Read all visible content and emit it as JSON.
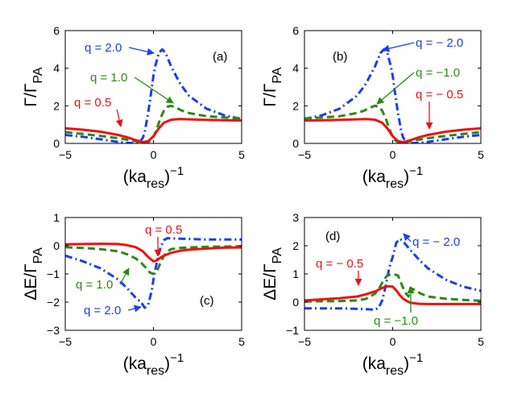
{
  "chart_data": [
    {
      "id": "a",
      "type": "line",
      "panel_label": "(a)",
      "xlabel_base": "(ka",
      "xlabel_sub": "res",
      "xlabel_close": ")",
      "xlabel_sup": "−1",
      "ylabel_base": "Γ/Γ",
      "ylabel_sub": "PA",
      "xlim": [
        -5,
        5
      ],
      "ylim": [
        0,
        6
      ],
      "xticks": [
        -5,
        0,
        5
      ],
      "yticks": [
        0,
        2,
        4,
        6
      ],
      "xtick_labels": [
        "−5",
        "0",
        "5"
      ],
      "ytick_labels": [
        "0",
        "2",
        "4",
        "6"
      ],
      "series": [
        {
          "name": "q = 2.0",
          "color": "#1a3df2",
          "style": "dashdot",
          "x": [
            -5,
            -4,
            -3,
            -2,
            -1.5,
            -1,
            -0.8,
            -0.6,
            -0.5,
            -0.3,
            -0.1,
            0,
            0.1,
            0.3,
            0.5,
            0.7,
            1,
            1.5,
            2,
            3,
            4,
            5
          ],
          "y": [
            0.45,
            0.35,
            0.22,
            0.08,
            0.03,
            0.0,
            0.05,
            0.3,
            0.6,
            1.6,
            2.9,
            3.6,
            4.1,
            4.8,
            5.0,
            4.8,
            4.1,
            3.2,
            2.55,
            1.85,
            1.5,
            1.3
          ]
        },
        {
          "name": "q = 1.0",
          "color": "#2a8a14",
          "style": "dashed",
          "x": [
            -5,
            -4,
            -3,
            -2,
            -1,
            -0.5,
            -0.3,
            -0.1,
            0,
            0.2,
            0.4,
            0.6,
            0.8,
            1,
            1.3,
            1.6,
            2,
            3,
            4,
            5
          ],
          "y": [
            0.6,
            0.5,
            0.4,
            0.28,
            0.12,
            0.05,
            0.06,
            0.2,
            0.35,
            0.8,
            1.35,
            1.75,
            1.95,
            2.0,
            1.9,
            1.75,
            1.62,
            1.45,
            1.38,
            1.33
          ]
        },
        {
          "name": "q = 0.5",
          "color": "#ee1111",
          "style": "solid",
          "x": [
            -5,
            -4,
            -3,
            -2,
            -1.5,
            -1,
            -0.6,
            -0.3,
            0,
            0.3,
            0.6,
            1,
            1.5,
            2,
            3,
            4,
            5
          ],
          "y": [
            0.8,
            0.73,
            0.62,
            0.45,
            0.33,
            0.17,
            0.07,
            0.12,
            0.38,
            0.8,
            1.1,
            1.26,
            1.3,
            1.28,
            1.25,
            1.23,
            1.22
          ]
        }
      ],
      "annotations": [
        {
          "text": "q = 2.0",
          "color": "#1a3df2",
          "series": 0
        },
        {
          "text": "q = 1.0",
          "color": "#2a8a14",
          "series": 1
        },
        {
          "text": "q = 0.5",
          "color": "#ee1111",
          "series": 2
        }
      ]
    },
    {
      "id": "b",
      "type": "line",
      "panel_label": "(b)",
      "xlabel_base": "(ka",
      "xlabel_sub": "res",
      "xlabel_close": ")",
      "xlabel_sup": "−1",
      "ylabel_base": "Γ/Γ",
      "ylabel_sub": "PA",
      "xlim": [
        -5,
        5
      ],
      "ylim": [
        0,
        6
      ],
      "xticks": [
        -5,
        0,
        5
      ],
      "yticks": [
        0,
        2,
        4,
        6
      ],
      "xtick_labels": [
        "−5",
        "0",
        "5"
      ],
      "ytick_labels": [
        "0",
        "2",
        "4",
        "6"
      ],
      "series": [
        {
          "name": "q = − 2.0",
          "color": "#1a3df2",
          "style": "dashdot",
          "x": [
            -5,
            -4,
            -3,
            -2,
            -1.5,
            -1,
            -0.7,
            -0.5,
            -0.3,
            -0.1,
            0,
            0.1,
            0.3,
            0.5,
            0.6,
            0.8,
            1,
            1.5,
            2,
            3,
            4,
            5
          ],
          "y": [
            1.3,
            1.5,
            1.85,
            2.55,
            3.2,
            4.1,
            4.8,
            5.0,
            4.8,
            4.1,
            3.6,
            2.9,
            1.6,
            0.6,
            0.3,
            0.05,
            0.0,
            0.03,
            0.08,
            0.22,
            0.35,
            0.45
          ]
        },
        {
          "name": "q = −1.0",
          "color": "#2a8a14",
          "style": "dashed",
          "x": [
            -5,
            -4,
            -3,
            -2,
            -1.6,
            -1.3,
            -1,
            -0.8,
            -0.6,
            -0.4,
            -0.2,
            0,
            0.1,
            0.3,
            0.5,
            1,
            2,
            3,
            4,
            5
          ],
          "y": [
            1.33,
            1.38,
            1.45,
            1.62,
            1.75,
            1.9,
            2.0,
            1.95,
            1.75,
            1.35,
            0.8,
            0.35,
            0.2,
            0.06,
            0.05,
            0.12,
            0.28,
            0.4,
            0.5,
            0.6
          ]
        },
        {
          "name": "q = − 0.5",
          "color": "#ee1111",
          "style": "solid",
          "x": [
            -5,
            -4,
            -3,
            -2,
            -1.5,
            -1,
            -0.6,
            -0.3,
            0,
            0.3,
            0.6,
            1,
            1.5,
            2,
            3,
            4,
            5
          ],
          "y": [
            1.22,
            1.23,
            1.25,
            1.28,
            1.3,
            1.26,
            1.1,
            0.8,
            0.38,
            0.12,
            0.07,
            0.17,
            0.33,
            0.45,
            0.62,
            0.73,
            0.8
          ]
        }
      ],
      "annotations": [
        {
          "text": "q = − 2.0",
          "color": "#1a3df2",
          "series": 0
        },
        {
          "text": "q = −1.0",
          "color": "#2a8a14",
          "series": 1
        },
        {
          "text": "q = − 0.5",
          "color": "#ee1111",
          "series": 2
        }
      ]
    },
    {
      "id": "c",
      "type": "line",
      "panel_label": "(c)",
      "xlabel_base": "(ka",
      "xlabel_sub": "res",
      "xlabel_close": ")",
      "xlabel_sup": "−1",
      "ylabel_base": "ΔE/Γ",
      "ylabel_sub": "PA",
      "xlim": [
        -5,
        5
      ],
      "ylim": [
        -3,
        1
      ],
      "xticks": [
        -5,
        0,
        5
      ],
      "yticks": [
        -3,
        -2,
        -1,
        0,
        1
      ],
      "xtick_labels": [
        "−5",
        "0",
        "5"
      ],
      "ytick_labels": [
        "−3",
        "−2",
        "−1",
        "0",
        "1"
      ],
      "series": [
        {
          "name": "q = 2.0",
          "color": "#1a3df2",
          "style": "dashdot",
          "x": [
            -5,
            -4,
            -3,
            -2,
            -1.5,
            -1,
            -0.7,
            -0.5,
            -0.3,
            -0.1,
            0,
            0.2,
            0.4,
            0.6,
            0.8,
            1,
            1.5,
            2,
            3,
            4,
            5
          ],
          "y": [
            -0.35,
            -0.55,
            -0.8,
            -1.2,
            -1.5,
            -1.85,
            -2.0,
            -2.2,
            -2.1,
            -1.6,
            -1.2,
            -0.55,
            -0.05,
            0.2,
            0.27,
            0.26,
            0.25,
            0.24,
            0.22,
            0.22,
            0.22
          ]
        },
        {
          "name": "q = 1.0",
          "color": "#2a8a14",
          "style": "dashed",
          "x": [
            -5,
            -4,
            -3,
            -2,
            -1.5,
            -1,
            -0.7,
            -0.4,
            -0.2,
            0,
            0.2,
            0.4,
            0.6,
            0.8,
            1,
            1.5,
            2,
            3,
            4,
            5
          ],
          "y": [
            -0.05,
            -0.08,
            -0.12,
            -0.2,
            -0.3,
            -0.45,
            -0.6,
            -0.8,
            -0.95,
            -1.0,
            -0.9,
            -0.6,
            -0.35,
            -0.2,
            -0.12,
            -0.08,
            -0.06,
            -0.04,
            -0.03,
            -0.02
          ]
        },
        {
          "name": "q = 0.5",
          "color": "#ee1111",
          "style": "solid",
          "x": [
            -5,
            -4,
            -3,
            -2,
            -1.5,
            -1,
            -0.6,
            -0.3,
            0,
            0.2,
            0.4,
            0.6,
            0.8,
            1,
            1.5,
            2,
            3,
            4,
            5
          ],
          "y": [
            0.05,
            0.06,
            0.07,
            0.06,
            0.02,
            -0.05,
            -0.2,
            -0.4,
            -0.55,
            -0.52,
            -0.42,
            -0.35,
            -0.3,
            -0.25,
            -0.18,
            -0.14,
            -0.1,
            -0.07,
            -0.06
          ]
        }
      ],
      "annotations": [
        {
          "text": "q = 0.5",
          "color": "#ee1111",
          "series": 2
        },
        {
          "text": "q = 1.0",
          "color": "#2a8a14",
          "series": 1
        },
        {
          "text": "q = 2.0",
          "color": "#1a3df2",
          "series": 0
        }
      ]
    },
    {
      "id": "d",
      "type": "line",
      "panel_label": "(d)",
      "xlabel_base": "(ka",
      "xlabel_sub": "res",
      "xlabel_close": ")",
      "xlabel_sup": "−1",
      "ylabel_base": "ΔE/Γ",
      "ylabel_sub": "PA",
      "xlim": [
        -5,
        5
      ],
      "ylim": [
        -1,
        3
      ],
      "xticks": [
        -5,
        0,
        5
      ],
      "yticks": [
        -1,
        0,
        1,
        2,
        3
      ],
      "xtick_labels": [
        "−5",
        "0",
        "5"
      ],
      "ytick_labels": [
        "−1",
        "0",
        "1",
        "2",
        "3"
      ],
      "series": [
        {
          "name": "q = − 2.0",
          "color": "#1a3df2",
          "style": "dashdot",
          "x": [
            -5,
            -4,
            -3,
            -2,
            -1.5,
            -1,
            -0.8,
            -0.6,
            -0.4,
            -0.2,
            0,
            0.2,
            0.4,
            0.6,
            0.8,
            1,
            1.5,
            2,
            3,
            4,
            5
          ],
          "y": [
            -0.22,
            -0.22,
            -0.22,
            -0.24,
            -0.25,
            -0.27,
            -0.2,
            0.05,
            0.55,
            1.2,
            1.6,
            2.1,
            2.25,
            2.15,
            2.0,
            1.85,
            1.5,
            1.2,
            0.8,
            0.55,
            0.4
          ]
        },
        {
          "name": "q = −1.0",
          "color": "#2a8a14",
          "style": "dashed",
          "x": [
            -5,
            -4,
            -3,
            -2,
            -1.5,
            -1,
            -0.8,
            -0.5,
            -0.3,
            0,
            0.3,
            0.5,
            0.7,
            0.9,
            1,
            1.3,
            1.6,
            2,
            3,
            4,
            5
          ],
          "y": [
            0.02,
            0.03,
            0.04,
            0.06,
            0.12,
            0.3,
            0.45,
            0.8,
            0.95,
            1.0,
            0.95,
            0.65,
            0.35,
            0.2,
            0.5,
            0.42,
            0.3,
            0.2,
            0.12,
            0.08,
            0.05
          ]
        },
        {
          "name": "q = − 0.5",
          "color": "#ee1111",
          "style": "solid",
          "x": [
            -5,
            -4,
            -3,
            -2,
            -1.5,
            -1,
            -0.6,
            -0.4,
            -0.2,
            0,
            0.2,
            0.4,
            0.6,
            0.8,
            1,
            1.5,
            2,
            3,
            4,
            5
          ],
          "y": [
            0.06,
            0.1,
            0.14,
            0.2,
            0.28,
            0.38,
            0.5,
            0.55,
            0.56,
            0.55,
            0.42,
            0.25,
            0.12,
            0.04,
            -0.02,
            -0.06,
            -0.07,
            -0.07,
            -0.07,
            -0.07
          ]
        }
      ],
      "annotations": [
        {
          "text": "q = − 2.0",
          "color": "#1a3df2",
          "series": 0
        },
        {
          "text": "q = − 0.5",
          "color": "#ee1111",
          "series": 2
        },
        {
          "text": "q = −1.0",
          "color": "#2a8a14",
          "series": 1
        }
      ]
    }
  ]
}
